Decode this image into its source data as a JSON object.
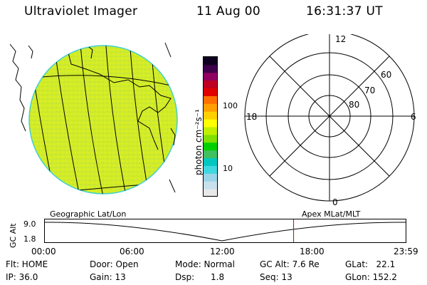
{
  "header": {
    "instrument": "Ultraviolet Imager",
    "date": "11 Aug 00",
    "time": "16:31:37 UT"
  },
  "colorbar": {
    "unit_label": "photon cm⁻²s⁻¹",
    "tick_100": "100",
    "tick_10": "10",
    "colors": [
      "#e8e8e8",
      "#c8e0ec",
      "#9ad4e8",
      "#40d8e0",
      "#00c8c0",
      "#40c060",
      "#00d000",
      "#80e000",
      "#c0f000",
      "#ffff00",
      "#ffd000",
      "#ffa000",
      "#ff7000",
      "#e00000",
      "#c00020",
      "#900060",
      "#40004c",
      "#100020"
    ]
  },
  "polar_plot": {
    "mlt_top": "12",
    "mlt_left": "18",
    "mlt_right": "6",
    "mlt_bottom": "0",
    "lat_60": "60",
    "lat_70": "70",
    "lat_80": "80"
  },
  "timeline": {
    "left_label": "Geographic Lat/Lon",
    "right_label": "Apex MLat/MLT",
    "y_axis_label": "GC Alt",
    "y_tick_top": "9.0",
    "y_tick_bottom": "1.8",
    "x_ticks": [
      "00:00",
      "06:00",
      "12:00",
      "18:00",
      "23:59"
    ],
    "current_time_marker_hours": 16.53
  },
  "info": {
    "flt": "Flt: HOME",
    "ip": "IP: 36.0",
    "door": "Door: Open",
    "gain": "Gain: 13",
    "mode": "Mode: Normal",
    "dsp": "Dsp:      1.8",
    "gcalt": "GC Alt: 7.6 Re",
    "seq": "Seq: 13",
    "glat": "GLat:   22.1",
    "glon": "GLon: 152.2"
  }
}
